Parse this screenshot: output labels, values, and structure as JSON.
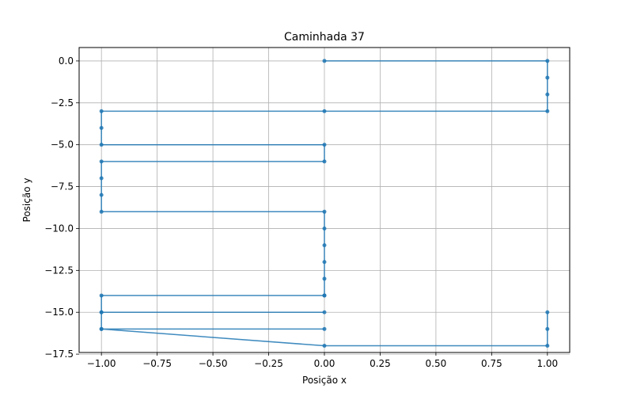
{
  "chart_data": {
    "type": "line",
    "title": "Caminhada 37",
    "xlabel": "Posição x",
    "ylabel": "Posição y",
    "xlim": [
      -1.1,
      1.1
    ],
    "ylim": [
      -17.4,
      0.8
    ],
    "xticks": [
      -1.0,
      -0.75,
      -0.5,
      -0.25,
      0.0,
      0.25,
      0.5,
      0.75,
      1.0
    ],
    "xtick_labels": [
      "−1.00",
      "−0.75",
      "−0.50",
      "−0.25",
      "0.00",
      "0.25",
      "0.50",
      "0.75",
      "1.00"
    ],
    "yticks": [
      0.0,
      -2.5,
      -5.0,
      -7.5,
      -10.0,
      -12.5,
      -15.0,
      -17.5
    ],
    "ytick_labels": [
      "0.0",
      "−2.5",
      "−5.0",
      "−7.5",
      "−10.0",
      "−12.5",
      "−15.0",
      "−17.5"
    ],
    "grid": true,
    "series_color": "#1f77b4",
    "series": [
      {
        "x": [
          0,
          1,
          1,
          1,
          1,
          0,
          -1,
          -1,
          -1,
          0,
          0,
          -1,
          -1,
          -1,
          -1,
          0,
          0,
          0,
          0,
          0,
          0,
          0,
          -1,
          -1,
          0,
          -1,
          -1,
          0,
          -1,
          0,
          1,
          1,
          1
        ],
        "y": [
          0,
          0,
          -1,
          -2,
          -3,
          -3,
          -3,
          -4,
          -5,
          -5,
          -6,
          -6,
          -7,
          -8,
          -9,
          -9,
          -10,
          -11,
          -12,
          -13,
          -14,
          -14,
          -14,
          -15,
          -15,
          -15,
          -16,
          -16,
          -16,
          -17,
          -17,
          -16,
          -15
        ]
      }
    ]
  }
}
